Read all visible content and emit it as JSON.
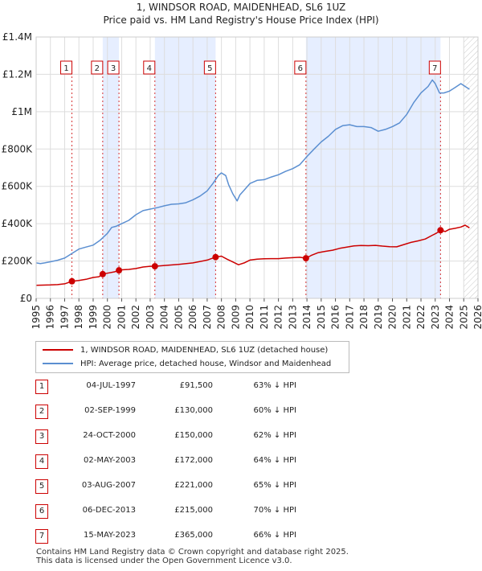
{
  "header": {
    "title": "1, WINDSOR ROAD, MAIDENHEAD, SL6 1UZ",
    "subtitle": "Price paid vs. HM Land Registry's House Price Index (HPI)"
  },
  "chart_data": {
    "type": "line",
    "title": "1, WINDSOR ROAD, MAIDENHEAD, SL6 1UZ",
    "subtitle": "Price paid vs. HM Land Registry's House Price Index (HPI)",
    "xlim": [
      1995,
      2026
    ],
    "ylim": [
      0,
      1400000
    ],
    "y_ticks": [
      {
        "value": 0,
        "label": "£0"
      },
      {
        "value": 200000,
        "label": "£200K"
      },
      {
        "value": 400000,
        "label": "£400K"
      },
      {
        "value": 600000,
        "label": "£600K"
      },
      {
        "value": 800000,
        "label": "£800K"
      },
      {
        "value": 1000000,
        "label": "£1M"
      },
      {
        "value": 1200000,
        "label": "£1.2M"
      },
      {
        "value": 1400000,
        "label": "£1.4M"
      }
    ],
    "x_ticks": [
      "1995",
      "1996",
      "1997",
      "1998",
      "1999",
      "2000",
      "2001",
      "2002",
      "2003",
      "2004",
      "2005",
      "2006",
      "2007",
      "2008",
      "2009",
      "2010",
      "2011",
      "2012",
      "2013",
      "2014",
      "2015",
      "2016",
      "2017",
      "2018",
      "2019",
      "2020",
      "2021",
      "2022",
      "2023",
      "2024",
      "2025",
      "2026"
    ],
    "hatch_from": 2025.0,
    "colors": {
      "red": "#cc0000",
      "blue": "#5b8fd1",
      "band": "#e6eeff",
      "grid": "#dddddd"
    },
    "series": [
      {
        "name": "1, WINDSOR ROAD, MAIDENHEAD, SL6 1UZ (detached house)",
        "color": "#cc0000",
        "points": [
          [
            1995.0,
            70000
          ],
          [
            1995.5,
            71000
          ],
          [
            1996.0,
            72000
          ],
          [
            1996.5,
            73500
          ],
          [
            1997.0,
            78000
          ],
          [
            1997.51,
            91500
          ],
          [
            1998.0,
            96000
          ],
          [
            1998.5,
            102000
          ],
          [
            1999.0,
            112000
          ],
          [
            1999.4,
            116000
          ],
          [
            1999.67,
            130000
          ],
          [
            2000.0,
            135000
          ],
          [
            2000.5,
            142000
          ],
          [
            2000.81,
            150000
          ],
          [
            2001.0,
            153000
          ],
          [
            2001.5,
            155000
          ],
          [
            2002.0,
            160000
          ],
          [
            2002.5,
            168000
          ],
          [
            2003.0,
            172000
          ],
          [
            2003.33,
            172000
          ],
          [
            2004.0,
            176000
          ],
          [
            2005.0,
            182000
          ],
          [
            2006.0,
            190000
          ],
          [
            2007.0,
            205000
          ],
          [
            2007.59,
            221000
          ],
          [
            2008.0,
            226000
          ],
          [
            2008.4,
            210000
          ],
          [
            2008.8,
            195000
          ],
          [
            2009.2,
            180000
          ],
          [
            2009.6,
            190000
          ],
          [
            2010.0,
            205000
          ],
          [
            2010.5,
            210000
          ],
          [
            2011.0,
            212000
          ],
          [
            2011.5,
            213000
          ],
          [
            2012.0,
            213000
          ],
          [
            2012.5,
            216000
          ],
          [
            2013.0,
            218000
          ],
          [
            2013.5,
            220000
          ],
          [
            2013.93,
            215000
          ],
          [
            2014.3,
            230000
          ],
          [
            2014.8,
            245000
          ],
          [
            2015.3,
            252000
          ],
          [
            2015.8,
            258000
          ],
          [
            2016.3,
            268000
          ],
          [
            2016.8,
            275000
          ],
          [
            2017.3,
            281000
          ],
          [
            2017.8,
            283000
          ],
          [
            2018.3,
            282000
          ],
          [
            2018.8,
            284000
          ],
          [
            2019.3,
            280000
          ],
          [
            2019.8,
            277000
          ],
          [
            2020.3,
            276000
          ],
          [
            2020.8,
            288000
          ],
          [
            2021.3,
            300000
          ],
          [
            2021.8,
            308000
          ],
          [
            2022.3,
            318000
          ],
          [
            2022.8,
            338000
          ],
          [
            2023.1,
            350000
          ],
          [
            2023.37,
            365000
          ],
          [
            2023.7,
            358000
          ],
          [
            2024.0,
            370000
          ],
          [
            2024.4,
            375000
          ],
          [
            2024.8,
            382000
          ],
          [
            2025.1,
            392000
          ],
          [
            2025.4,
            378000
          ]
        ]
      },
      {
        "name": "HPI: Average price, detached house, Windsor and Maidenhead",
        "color": "#5b8fd1",
        "points": [
          [
            1995.0,
            190000
          ],
          [
            1995.3,
            186000
          ],
          [
            1995.6,
            190000
          ],
          [
            1996.0,
            196000
          ],
          [
            1996.5,
            204000
          ],
          [
            1997.0,
            216000
          ],
          [
            1997.5,
            240000
          ],
          [
            1998.0,
            264000
          ],
          [
            1998.5,
            275000
          ],
          [
            1999.0,
            285000
          ],
          [
            1999.5,
            312000
          ],
          [
            2000.0,
            348000
          ],
          [
            2000.3,
            380000
          ],
          [
            2000.6,
            386000
          ],
          [
            2001.0,
            400000
          ],
          [
            2001.5,
            418000
          ],
          [
            2002.0,
            448000
          ],
          [
            2002.5,
            470000
          ],
          [
            2003.0,
            478000
          ],
          [
            2003.5,
            486000
          ],
          [
            2004.0,
            496000
          ],
          [
            2004.5,
            504000
          ],
          [
            2005.0,
            506000
          ],
          [
            2005.5,
            512000
          ],
          [
            2006.0,
            528000
          ],
          [
            2006.5,
            548000
          ],
          [
            2007.0,
            576000
          ],
          [
            2007.4,
            615000
          ],
          [
            2007.8,
            660000
          ],
          [
            2008.0,
            672000
          ],
          [
            2008.3,
            658000
          ],
          [
            2008.5,
            610000
          ],
          [
            2008.8,
            560000
          ],
          [
            2009.1,
            522000
          ],
          [
            2009.3,
            555000
          ],
          [
            2009.6,
            580000
          ],
          [
            2010.0,
            615000
          ],
          [
            2010.5,
            632000
          ],
          [
            2011.0,
            636000
          ],
          [
            2011.5,
            650000
          ],
          [
            2012.0,
            662000
          ],
          [
            2012.5,
            680000
          ],
          [
            2013.0,
            695000
          ],
          [
            2013.5,
            716000
          ],
          [
            2014.0,
            760000
          ],
          [
            2014.5,
            800000
          ],
          [
            2015.0,
            838000
          ],
          [
            2015.5,
            868000
          ],
          [
            2016.0,
            905000
          ],
          [
            2016.5,
            925000
          ],
          [
            2017.0,
            930000
          ],
          [
            2017.5,
            920000
          ],
          [
            2018.0,
            920000
          ],
          [
            2018.5,
            915000
          ],
          [
            2019.0,
            895000
          ],
          [
            2019.5,
            905000
          ],
          [
            2020.0,
            920000
          ],
          [
            2020.5,
            940000
          ],
          [
            2021.0,
            985000
          ],
          [
            2021.5,
            1050000
          ],
          [
            2022.0,
            1100000
          ],
          [
            2022.5,
            1135000
          ],
          [
            2022.8,
            1170000
          ],
          [
            2023.0,
            1150000
          ],
          [
            2023.3,
            1100000
          ],
          [
            2023.6,
            1100000
          ],
          [
            2024.0,
            1110000
          ],
          [
            2024.4,
            1130000
          ],
          [
            2024.8,
            1150000
          ],
          [
            2025.0,
            1140000
          ],
          [
            2025.4,
            1120000
          ]
        ]
      }
    ],
    "sales": [
      {
        "num": "1",
        "year": 1997.51,
        "price": 91500
      },
      {
        "num": "2",
        "year": 1999.67,
        "price": 130000
      },
      {
        "num": "3",
        "year": 2000.81,
        "price": 150000
      },
      {
        "num": "4",
        "year": 2003.33,
        "price": 172000
      },
      {
        "num": "5",
        "year": 2007.59,
        "price": 221000
      },
      {
        "num": "6",
        "year": 2013.93,
        "price": 215000
      },
      {
        "num": "7",
        "year": 2023.37,
        "price": 365000
      }
    ],
    "bands": [
      [
        1999.67,
        2000.81
      ],
      [
        2003.33,
        2007.59
      ],
      [
        2013.93,
        2023.37
      ]
    ],
    "legend_position": "bottom"
  },
  "legend": {
    "red_label": "1, WINDSOR ROAD, MAIDENHEAD, SL6 1UZ (detached house)",
    "blue_label": "HPI: Average price, detached house, Windsor and Maidenhead"
  },
  "table": {
    "rows": [
      {
        "num": "1",
        "date": "04-JUL-1997",
        "price": "£91,500",
        "hpi": "63% ↓ HPI"
      },
      {
        "num": "2",
        "date": "02-SEP-1999",
        "price": "£130,000",
        "hpi": "60% ↓ HPI"
      },
      {
        "num": "3",
        "date": "24-OCT-2000",
        "price": "£150,000",
        "hpi": "62% ↓ HPI"
      },
      {
        "num": "4",
        "date": "02-MAY-2003",
        "price": "£172,000",
        "hpi": "64% ↓ HPI"
      },
      {
        "num": "5",
        "date": "03-AUG-2007",
        "price": "£221,000",
        "hpi": "65% ↓ HPI"
      },
      {
        "num": "6",
        "date": "06-DEC-2013",
        "price": "£215,000",
        "hpi": "70% ↓ HPI"
      },
      {
        "num": "7",
        "date": "15-MAY-2023",
        "price": "£365,000",
        "hpi": "66% ↓ HPI"
      }
    ]
  },
  "footer": {
    "line1": "Contains HM Land Registry data © Crown copyright and database right 2025.",
    "line2": "This data is licensed under the Open Government Licence v3.0."
  }
}
